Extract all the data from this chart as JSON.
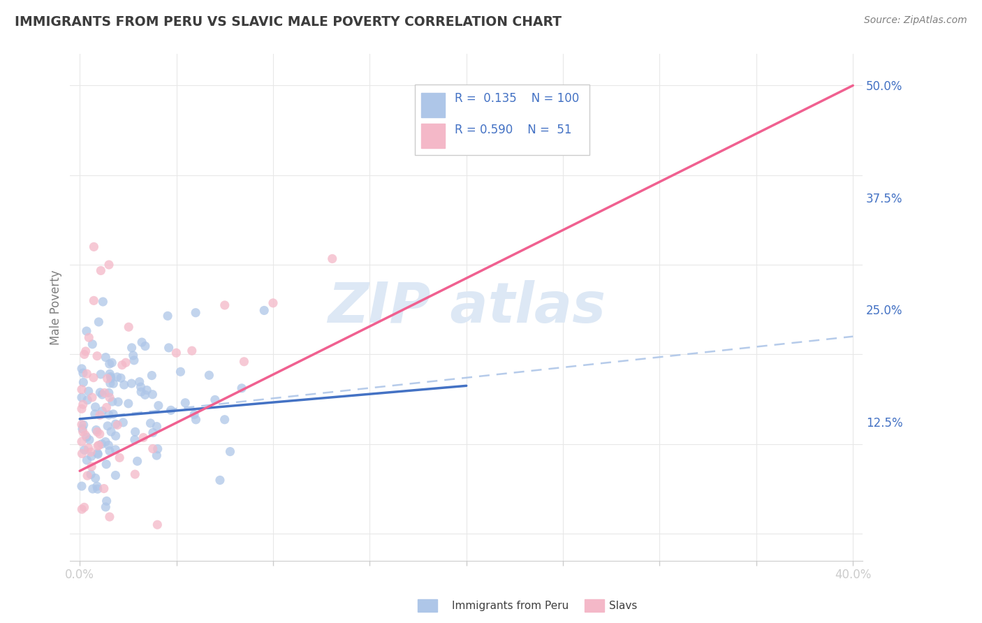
{
  "title": "IMMIGRANTS FROM PERU VS SLAVIC MALE POVERTY CORRELATION CHART",
  "source": "Source: ZipAtlas.com",
  "ylabel": "Male Poverty",
  "xlim": [
    -0.005,
    0.405
  ],
  "ylim": [
    -0.03,
    0.535
  ],
  "xticks": [
    0.0,
    0.05,
    0.1,
    0.15,
    0.2,
    0.25,
    0.3,
    0.35,
    0.4
  ],
  "xticklabels": [
    "0.0%",
    "",
    "",
    "",
    "",
    "",
    "",
    "",
    "40.0%"
  ],
  "yticks_right": [
    0.125,
    0.25,
    0.375,
    0.5
  ],
  "yticklabels_right": [
    "12.5%",
    "25.0%",
    "37.5%",
    "50.0%"
  ],
  "blue_scatter_color": "#AEC6E8",
  "pink_scatter_color": "#F4B8C8",
  "blue_line_color": "#4472C4",
  "pink_line_color": "#F06090",
  "dashed_line_color": "#AEC6E8",
  "title_color": "#3C3C3C",
  "source_color": "#808080",
  "ylabel_color": "#808080",
  "tick_color": "#4472C4",
  "grid_color": "#E8E8E8",
  "watermark_color": "#DDE8F5",
  "blue_line_x0": 0.0,
  "blue_line_y0": 0.128,
  "blue_line_x1": 0.2,
  "blue_line_y1": 0.165,
  "pink_line_x0": 0.0,
  "pink_line_y0": 0.07,
  "pink_line_x1": 0.4,
  "pink_line_y1": 0.5,
  "dash_line_x0": 0.0,
  "dash_line_y0": 0.128,
  "dash_line_x1": 0.4,
  "dash_line_y1": 0.22
}
